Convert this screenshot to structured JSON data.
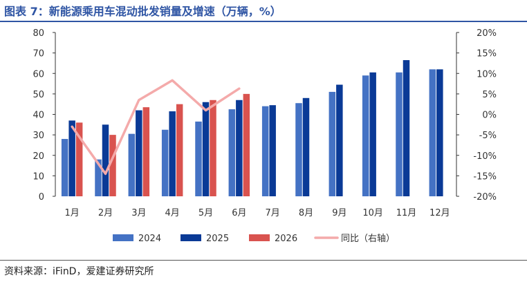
{
  "figure": {
    "title": "图表 7：新能源乘用车混动批发销量及增速（万辆，%）",
    "source": "资料来源：iFinD，爱建证券研究所"
  },
  "chart_data": {
    "type": "bar",
    "categories": [
      "1月",
      "2月",
      "3月",
      "4月",
      "5月",
      "6月",
      "7月",
      "8月",
      "9月",
      "10月",
      "11月",
      "12月"
    ],
    "series": [
      {
        "name": "2024",
        "type": "bar",
        "axis": "left",
        "color": "#4472C4",
        "values": [
          28,
          18,
          30.5,
          32.5,
          36.5,
          42.5,
          44,
          45.5,
          51,
          59,
          60.5,
          62
        ]
      },
      {
        "name": "2025",
        "type": "bar",
        "axis": "left",
        "color": "#0A3A96",
        "values": [
          37,
          35,
          42,
          41.5,
          46,
          47,
          44.5,
          48,
          54.5,
          60.5,
          66.5,
          62
        ]
      },
      {
        "name": "2026",
        "type": "bar",
        "axis": "left",
        "color": "#D9534F",
        "values": [
          36,
          30,
          43.5,
          45,
          47,
          50,
          null,
          null,
          null,
          null,
          null,
          null
        ]
      },
      {
        "name": "同比（右轴）",
        "type": "line",
        "axis": "right",
        "color": "#F4AAAA",
        "values": [
          -3,
          -14.5,
          3.5,
          8.3,
          1,
          6.3,
          null,
          null,
          null,
          null,
          null,
          null
        ]
      }
    ],
    "ylim": [
      0,
      80
    ],
    "yticks": [
      0,
      10,
      20,
      30,
      40,
      50,
      60,
      70,
      80
    ],
    "y2lim": [
      -20,
      20
    ],
    "y2ticks": [
      "-20%",
      "-15%",
      "-10%",
      "-5%",
      "0%",
      "5%",
      "10%",
      "15%",
      "20%"
    ],
    "y2tick_values": [
      -20,
      -15,
      -10,
      -5,
      0,
      5,
      10,
      15,
      20
    ],
    "xlabel": "",
    "ylabel": "",
    "grid": false,
    "legend": "bottom"
  }
}
